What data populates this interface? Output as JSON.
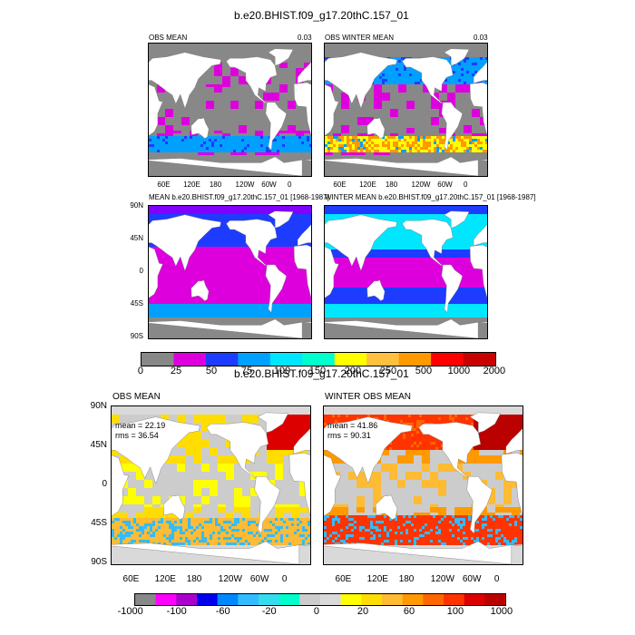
{
  "colors": {
    "land": "#ffffff",
    "missing": "#888888",
    "top_palette": [
      "#888888",
      "#dd00dd",
      "#7f00ff",
      "#1e3cff",
      "#00a0ff",
      "#00e6ff",
      "#00ffcc",
      "#ffff00",
      "#ffc040",
      "#ff9900",
      "#ff4400",
      "#ff0000",
      "#c80000"
    ],
    "bottom_palette": [
      "#888888",
      "#ff00ff",
      "#aa00cc",
      "#0000ee",
      "#0088ff",
      "#33bbff",
      "#33ddee",
      "#00ffcc",
      "#cccccc",
      "#d9d9d9",
      "#ffff00",
      "#ffdd00",
      "#ffbb33",
      "#ff9900",
      "#ff6600",
      "#ff3300",
      "#dd0000",
      "#bb0000"
    ]
  },
  "chart_data": [
    {
      "type": "heatmap",
      "figure_title": "b.e20.BHIST.f09_g17.20thC.157_01",
      "panels": [
        {
          "label_left": "OBS MEAN",
          "label_right": "0.03"
        },
        {
          "label_left": "OBS WINTER MEAN",
          "label_right": "0.03"
        },
        {
          "label_left": "MEAN b.e20.BHIST.f09_g17.20thC.157_01 [1968-1987]",
          "label_right": ""
        },
        {
          "label_left": "WINTER MEAN b.e20.BHIST.f09_g17.20thC.157_01 [1968-1987]",
          "label_right": ""
        }
      ],
      "x_ticks": [
        "60E",
        "120E",
        "180",
        "120W",
        "60W",
        "0"
      ],
      "y_ticks": [
        "90N",
        "45N",
        "0",
        "45S",
        "90S"
      ],
      "colorbar": {
        "labels": [
          "0",
          "25",
          "50",
          "75",
          "100",
          "150",
          "200",
          "250",
          "500",
          "1000",
          "2000"
        ]
      }
    },
    {
      "type": "heatmap",
      "figure_title": "b.e20.BHIST.f09_g17.20thC.157_01",
      "panels": [
        {
          "label_left": "OBS MEAN",
          "mean": "mean = 22.19",
          "rms": "rms = 36.54"
        },
        {
          "label_left": "WINTER OBS MEAN",
          "mean": "mean = 41.86",
          "rms": "rms = 90.31"
        }
      ],
      "x_ticks": [
        "60E",
        "120E",
        "180",
        "120W",
        "60W",
        "0"
      ],
      "y_ticks": [
        "90N",
        "45N",
        "0",
        "45S",
        "90S"
      ],
      "colorbar": {
        "labels": [
          "-1000",
          "-100",
          "-60",
          "-20",
          "0",
          "20",
          "60",
          "100",
          "1000"
        ]
      }
    }
  ]
}
